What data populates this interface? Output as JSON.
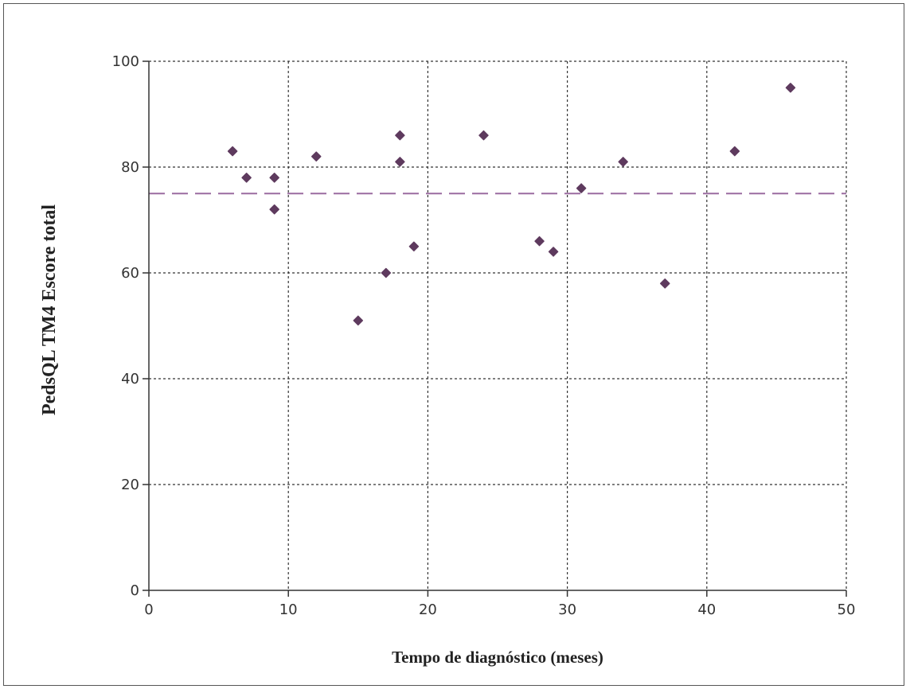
{
  "chart_data": {
    "type": "scatter",
    "title": "",
    "xlabel": "Tempo de diagnóstico (meses)",
    "ylabel": "PedsQL TM4 Escore total",
    "xlim": [
      0,
      50
    ],
    "ylim": [
      0,
      100
    ],
    "xticks": [
      0,
      10,
      20,
      30,
      40,
      50
    ],
    "yticks": [
      0,
      20,
      40,
      60,
      80,
      100
    ],
    "grid": true,
    "legend": "none",
    "series": [
      {
        "points": [
          {
            "x": 6,
            "y": 83
          },
          {
            "x": 7,
            "y": 78
          },
          {
            "x": 9,
            "y": 78
          },
          {
            "x": 9,
            "y": 72
          },
          {
            "x": 12,
            "y": 82
          },
          {
            "x": 15,
            "y": 51
          },
          {
            "x": 17,
            "y": 60
          },
          {
            "x": 18,
            "y": 86
          },
          {
            "x": 18,
            "y": 81
          },
          {
            "x": 19,
            "y": 65
          },
          {
            "x": 24,
            "y": 86
          },
          {
            "x": 28,
            "y": 66
          },
          {
            "x": 29,
            "y": 64
          },
          {
            "x": 31,
            "y": 76
          },
          {
            "x": 34,
            "y": 81
          },
          {
            "x": 37,
            "y": 58
          },
          {
            "x": 42,
            "y": 83
          },
          {
            "x": 46,
            "y": 95
          }
        ]
      }
    ],
    "reference_line": {
      "y": 75,
      "style": "dashed"
    },
    "colors": {
      "point": "#5e3a5e",
      "reference_line": "#9a6ba0",
      "grid": "#333333",
      "axis": "#333333"
    }
  }
}
